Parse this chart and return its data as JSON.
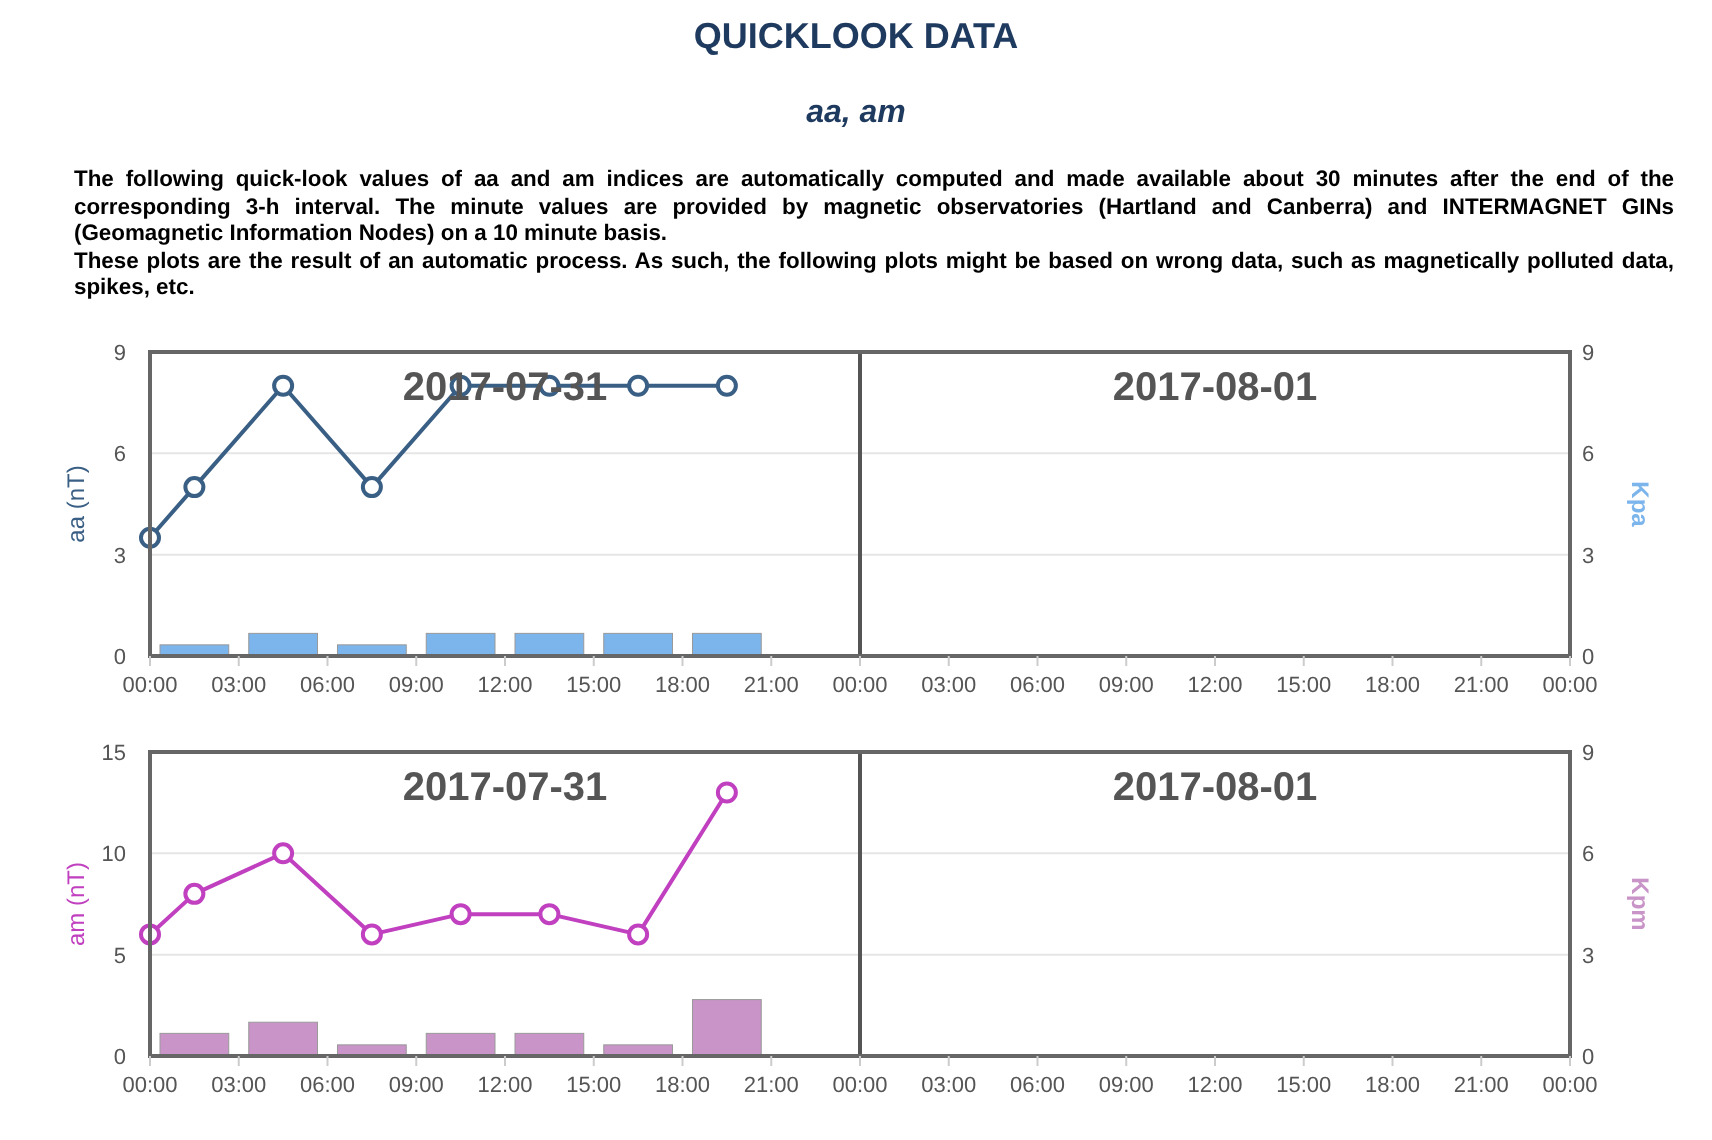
{
  "chart_data": [
    {
      "type": "line",
      "title": "QUICKLOOK DATA",
      "subtitle": "aa, am",
      "annotations": [
        "The following quick-look values of aa and am indices are automatically computed and made available about 30 minutes after the end of the corresponding 3-h interval. The minute values are provided by magnetic observatories (Hartland and Canberra) and INTERMAGNET GINs (Geomagnetic Information Nodes) on a 10 minute basis.",
        "These plots are the result of an automatic process. As such, the following plots might be based on wrong data, such as magnetically polluted data, spikes, etc.",
        "2017-07-31",
        "2017-08-01"
      ],
      "ylabel": "aa (nT)",
      "y2label": "Kpa",
      "xlim": [
        "2017-07-31T00:00",
        "2017-08-02T00:00"
      ],
      "xticks": [
        {
          "value": "2017-07-31T00:00",
          "label": "00:00"
        },
        {
          "value": "2017-07-31T03:00",
          "label": "03:00"
        },
        {
          "value": "2017-07-31T06:00",
          "label": "06:00"
        },
        {
          "value": "2017-07-31T09:00",
          "label": "09:00"
        },
        {
          "value": "2017-07-31T12:00",
          "label": "12:00"
        },
        {
          "value": "2017-07-31T15:00",
          "label": "15:00"
        },
        {
          "value": "2017-07-31T18:00",
          "label": "18:00"
        },
        {
          "value": "2017-07-31T21:00",
          "label": "21:00"
        },
        {
          "value": "2017-08-01T00:00",
          "label": "00:00"
        },
        {
          "value": "2017-08-01T03:00",
          "label": "03:00"
        },
        {
          "value": "2017-08-01T06:00",
          "label": "06:00"
        },
        {
          "value": "2017-08-01T09:00",
          "label": "09:00"
        },
        {
          "value": "2017-08-01T12:00",
          "label": "12:00"
        },
        {
          "value": "2017-08-01T15:00",
          "label": "15:00"
        },
        {
          "value": "2017-08-01T18:00",
          "label": "18:00"
        },
        {
          "value": "2017-08-01T21:00",
          "label": "21:00"
        },
        {
          "value": "2017-08-02T00:00",
          "label": "00:00"
        }
      ],
      "ylim": [
        0,
        9
      ],
      "yticks": [
        0,
        3,
        6,
        9
      ],
      "y2lim": [
        0,
        9
      ],
      "y2ticks": [
        0,
        3,
        6,
        9
      ],
      "grid": "y",
      "marker": "circle",
      "series": [
        {
          "type": "bar",
          "axis": "y2",
          "color": "#7cb5ec",
          "x": [
            "2017-07-31T01:30",
            "2017-07-31T04:30",
            "2017-07-31T07:30",
            "2017-07-31T10:30",
            "2017-07-31T13:30",
            "2017-07-31T16:30",
            "2017-07-31T19:30"
          ],
          "values": [
            0.33,
            0.67,
            0.33,
            0.67,
            0.67,
            0.67,
            0.67
          ]
        },
        {
          "color": "#3a5f85",
          "x": [
            "2017-07-31T00:00",
            "2017-07-31T01:30",
            "2017-07-31T04:30",
            "2017-07-31T07:30",
            "2017-07-31T10:30",
            "2017-07-31T13:30",
            "2017-07-31T16:30",
            "2017-07-31T19:30"
          ],
          "values": [
            3.5,
            5,
            8,
            5,
            8,
            8,
            8,
            8
          ]
        }
      ],
      "ref_lines": [
        {
          "axis": "x",
          "value": "2017-08-01T00:00"
        }
      ]
    },
    {
      "type": "line",
      "annotations": [
        "2017-07-31",
        "2017-08-01"
      ],
      "ylabel": "am (nT)",
      "y2label": "Kpm",
      "xlim": [
        "2017-07-31T00:00",
        "2017-08-02T00:00"
      ],
      "xticks": [
        {
          "value": "2017-07-31T00:00",
          "label": "00:00"
        },
        {
          "value": "2017-07-31T03:00",
          "label": "03:00"
        },
        {
          "value": "2017-07-31T06:00",
          "label": "06:00"
        },
        {
          "value": "2017-07-31T09:00",
          "label": "09:00"
        },
        {
          "value": "2017-07-31T12:00",
          "label": "12:00"
        },
        {
          "value": "2017-07-31T15:00",
          "label": "15:00"
        },
        {
          "value": "2017-07-31T18:00",
          "label": "18:00"
        },
        {
          "value": "2017-07-31T21:00",
          "label": "21:00"
        },
        {
          "value": "2017-08-01T00:00",
          "label": "00:00"
        },
        {
          "value": "2017-08-01T03:00",
          "label": "03:00"
        },
        {
          "value": "2017-08-01T06:00",
          "label": "06:00"
        },
        {
          "value": "2017-08-01T09:00",
          "label": "09:00"
        },
        {
          "value": "2017-08-01T12:00",
          "label": "12:00"
        },
        {
          "value": "2017-08-01T15:00",
          "label": "15:00"
        },
        {
          "value": "2017-08-01T18:00",
          "label": "18:00"
        },
        {
          "value": "2017-08-01T21:00",
          "label": "21:00"
        },
        {
          "value": "2017-08-02T00:00",
          "label": "00:00"
        }
      ],
      "ylim": [
        0,
        15
      ],
      "yticks": [
        0,
        5,
        10,
        15
      ],
      "y2lim": [
        0,
        9
      ],
      "y2ticks": [
        0,
        3,
        6,
        9
      ],
      "grid": "y",
      "marker": "circle",
      "series": [
        {
          "type": "bar",
          "axis": "y2",
          "color": "#c994c7",
          "x": [
            "2017-07-31T01:30",
            "2017-07-31T04:30",
            "2017-07-31T07:30",
            "2017-07-31T10:30",
            "2017-07-31T13:30",
            "2017-07-31T16:30",
            "2017-07-31T19:30"
          ],
          "values": [
            0.67,
            1,
            0.33,
            0.67,
            0.67,
            0.33,
            1.67
          ]
        },
        {
          "color": "#c040c0",
          "x": [
            "2017-07-31T00:00",
            "2017-07-31T01:30",
            "2017-07-31T04:30",
            "2017-07-31T07:30",
            "2017-07-31T10:30",
            "2017-07-31T13:30",
            "2017-07-31T16:30",
            "2017-07-31T19:30"
          ],
          "values": [
            6,
            8,
            10,
            6,
            7,
            7,
            6,
            13
          ]
        }
      ],
      "ref_lines": [
        {
          "axis": "x",
          "value": "2017-08-01T00:00"
        }
      ]
    }
  ]
}
